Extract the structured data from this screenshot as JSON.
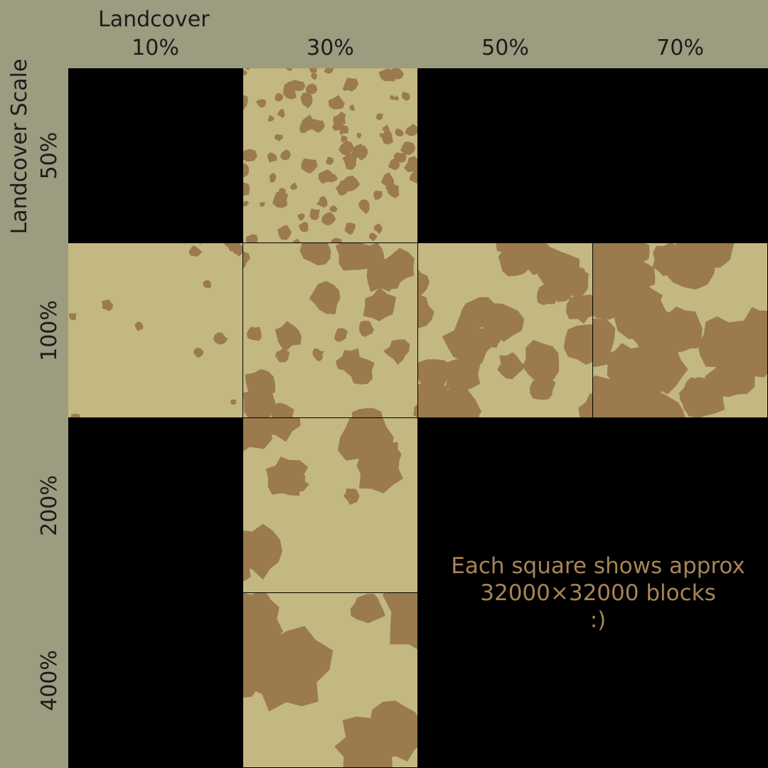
{
  "x_axis": {
    "title": "Landcover",
    "columns": [
      "10%",
      "30%",
      "50%",
      "70%"
    ]
  },
  "y_axis": {
    "title": "Landcover Scale",
    "rows": [
      "50%",
      "100%",
      "200%",
      "400%"
    ]
  },
  "tiles": [
    {
      "row": "50%",
      "col": "30%",
      "pattern": "small-speckle"
    },
    {
      "row": "100%",
      "col": "10%",
      "pattern": "sparse-blobs"
    },
    {
      "row": "100%",
      "col": "30%",
      "pattern": "medium-blobs"
    },
    {
      "row": "100%",
      "col": "50%",
      "pattern": "dense-blobs"
    },
    {
      "row": "100%",
      "col": "70%",
      "pattern": "very-dense-blobs"
    },
    {
      "row": "200%",
      "col": "30%",
      "pattern": "large-blobs"
    },
    {
      "row": "400%",
      "col": "30%",
      "pattern": "very-large-blobs"
    }
  ],
  "note": {
    "line1": "Each square shows approx",
    "line2": "32000×32000 blocks",
    "line3": ":)"
  },
  "colors": {
    "background": "#9d9b80",
    "grid_empty": "#000000",
    "tile_light": "#c3b882",
    "tile_dark": "#9b7a4e",
    "note_text": "#a88455"
  }
}
